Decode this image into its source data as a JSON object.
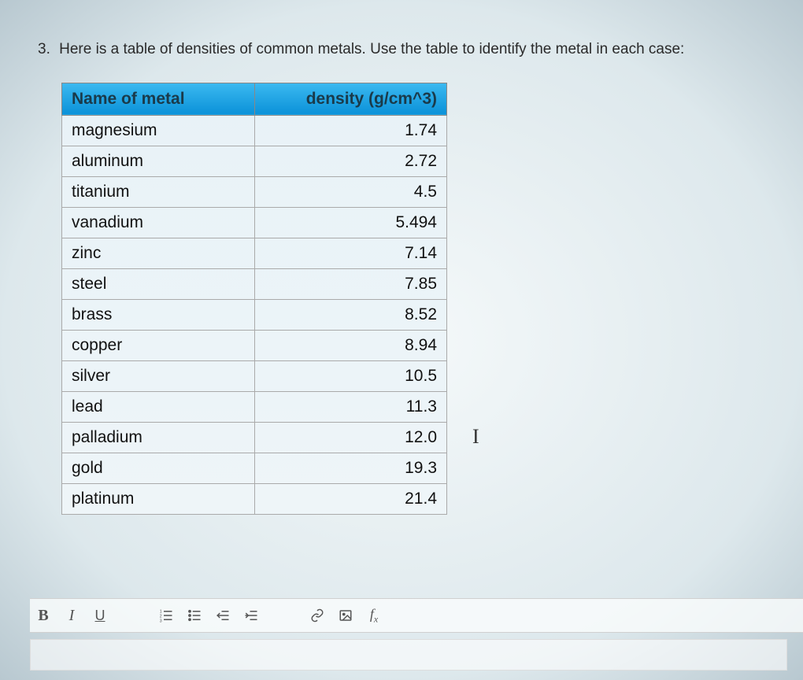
{
  "question": {
    "number": "3.",
    "text": "Here is a table of densities of common metals. Use the table to identify the metal in each case:"
  },
  "table": {
    "headers": {
      "name": "Name of metal",
      "density": "density (g/cm^3)"
    },
    "rows": [
      {
        "name": "magnesium",
        "density": "1.74"
      },
      {
        "name": "aluminum",
        "density": "2.72"
      },
      {
        "name": "titanium",
        "density": "4.5"
      },
      {
        "name": "vanadium",
        "density": "5.494"
      },
      {
        "name": "zinc",
        "density": "7.14"
      },
      {
        "name": "steel",
        "density": "7.85"
      },
      {
        "name": "brass",
        "density": "8.52"
      },
      {
        "name": "copper",
        "density": "8.94"
      },
      {
        "name": "silver",
        "density": "10.5"
      },
      {
        "name": "lead",
        "density": "11.3"
      },
      {
        "name": "palladium",
        "density": "12.0"
      },
      {
        "name": "gold",
        "density": "19.3"
      },
      {
        "name": "platinum",
        "density": "21.4"
      }
    ]
  },
  "toolbar": {
    "bold": "B",
    "italic": "I",
    "underline": "U",
    "fx": "fx"
  },
  "cursor": "I"
}
